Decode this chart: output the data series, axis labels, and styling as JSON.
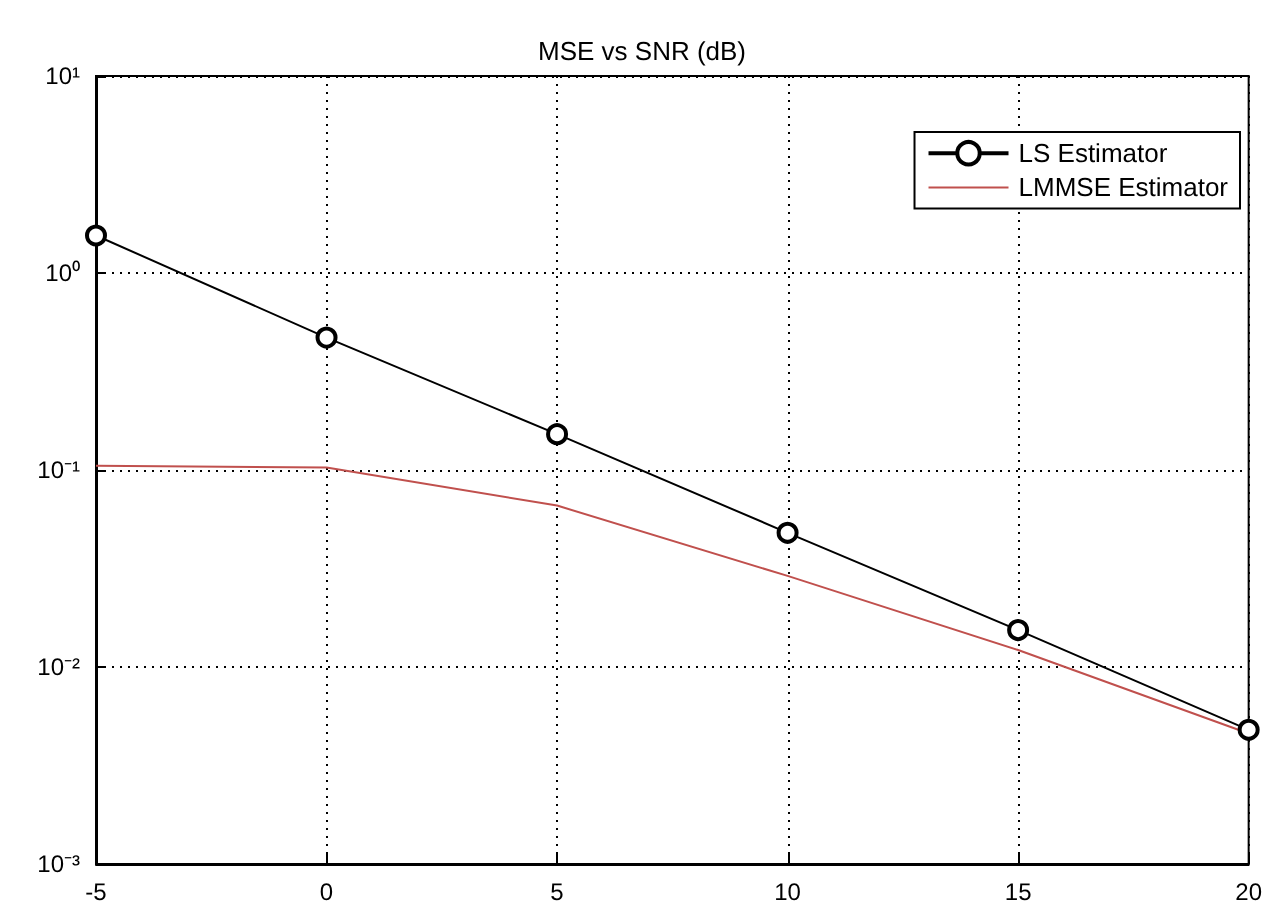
{
  "chart_data": {
    "type": "line",
    "title": "MSE vs SNR (dB)",
    "x": [
      -5,
      0,
      5,
      10,
      15,
      20
    ],
    "series": [
      {
        "name": "LS Estimator",
        "color": "#000000",
        "marker": "circle",
        "values": [
          1.55,
          0.47,
          0.152,
          0.048,
          0.0154,
          0.0048
        ]
      },
      {
        "name": "LMMSE Estimator",
        "color": "#c0504d",
        "marker": "none",
        "values": [
          0.105,
          0.103,
          0.066,
          0.029,
          0.0122,
          0.0046
        ]
      }
    ],
    "xlim": [
      -5,
      20
    ],
    "xticks": [
      -5,
      0,
      5,
      10,
      15,
      20
    ],
    "ylim": [
      0.001,
      10
    ],
    "yticks": [
      {
        "value": 0.001,
        "label": "10⁻³"
      },
      {
        "value": 0.01,
        "label": "10⁻²"
      },
      {
        "value": 0.1,
        "label": "10⁻¹"
      },
      {
        "value": 1,
        "label": "10⁰"
      },
      {
        "value": 10,
        "label": "10¹"
      }
    ],
    "log": "y",
    "grid": true,
    "legend": "top right",
    "line_style": "solid"
  }
}
